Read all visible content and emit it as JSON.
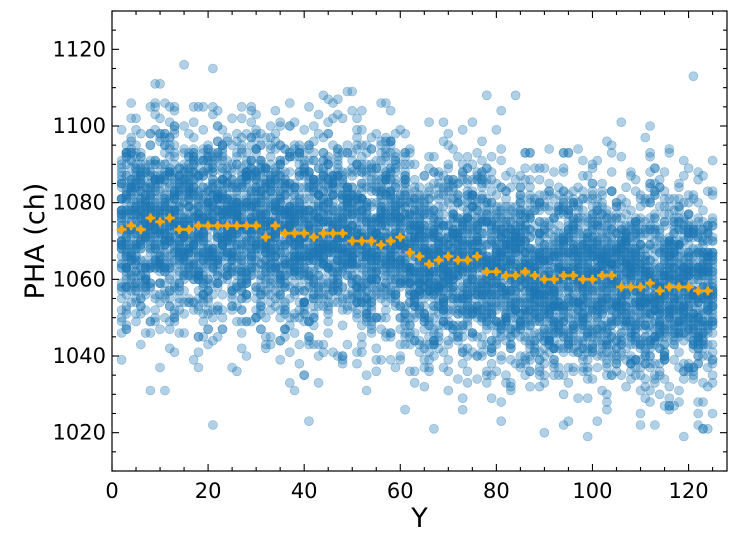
{
  "chart_data": {
    "type": "scatter",
    "xlabel": "Y",
    "ylabel": "PHA (ch)",
    "xlim": [
      0,
      128
    ],
    "ylim": [
      1010,
      1130
    ],
    "x_ticks": [
      0,
      20,
      40,
      60,
      80,
      100,
      120
    ],
    "y_ticks": [
      1020,
      1040,
      1060,
      1080,
      1100,
      1120
    ],
    "x_tick_labels": [
      "0",
      "20",
      "40",
      "60",
      "80",
      "100",
      "120"
    ],
    "y_tick_labels": [
      "1020",
      "1040",
      "1060",
      "1080",
      "1100",
      "1120"
    ],
    "grid": false,
    "scatter_color": "#1f77b4",
    "mean_color": "#ffa500",
    "scatter_summary": {
      "x_values": "integer columns 2 to 125",
      "spread_sd": 13,
      "min": 1011,
      "max": 1118
    },
    "mean_series": {
      "x": [
        2,
        4,
        6,
        8,
        10,
        12,
        14,
        16,
        18,
        20,
        22,
        24,
        26,
        28,
        30,
        32,
        34,
        36,
        38,
        40,
        42,
        44,
        46,
        48,
        50,
        52,
        54,
        56,
        58,
        60,
        62,
        64,
        66,
        68,
        70,
        72,
        74,
        76,
        78,
        80,
        82,
        84,
        86,
        88,
        90,
        92,
        94,
        96,
        98,
        100,
        102,
        104,
        106,
        108,
        110,
        112,
        114,
        116,
        118,
        120,
        122,
        124
      ],
      "y": [
        1073,
        1074,
        1073,
        1076,
        1075,
        1076,
        1073,
        1073,
        1074,
        1074,
        1074,
        1074,
        1074,
        1074,
        1074,
        1071,
        1074,
        1072,
        1072,
        1072,
        1071,
        1072,
        1072,
        1072,
        1070,
        1070,
        1070,
        1069,
        1070,
        1071,
        1067,
        1066,
        1064,
        1065,
        1066,
        1065,
        1065,
        1066,
        1062,
        1062,
        1061,
        1061,
        1062,
        1061,
        1060,
        1060,
        1061,
        1061,
        1060,
        1060,
        1061,
        1061,
        1058,
        1058,
        1058,
        1059,
        1057,
        1058,
        1058,
        1058,
        1057,
        1057
      ]
    }
  }
}
